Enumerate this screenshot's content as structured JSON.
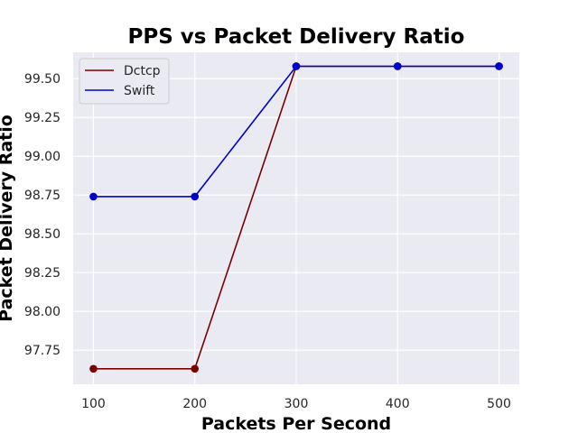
{
  "chart_data": {
    "type": "line",
    "title": "PPS vs Packet Delivery Ratio",
    "xlabel": "Packets Per Second",
    "ylabel": "Packet Delivery Ratio",
    "x": [
      100,
      200,
      300,
      400,
      500
    ],
    "x_ticks": [
      "100",
      "200",
      "300",
      "400",
      "500"
    ],
    "y_ticks": [
      "97.75",
      "98.00",
      "98.25",
      "98.50",
      "98.75",
      "99.00",
      "99.25",
      "99.50"
    ],
    "xlim": [
      80,
      520
    ],
    "ylim": [
      97.53,
      99.67
    ],
    "grid": true,
    "legend_position": "top-left",
    "series": [
      {
        "name": "Dctcp",
        "color": "#7a0000",
        "values": [
          97.63,
          97.63,
          99.58,
          99.58,
          99.58
        ]
      },
      {
        "name": "Swift",
        "color": "#0000cc",
        "values": [
          98.74,
          98.74,
          99.58,
          99.58,
          99.58
        ]
      }
    ],
    "colors": {
      "plot_bg": "#eaeaf2",
      "grid": "#ffffff"
    }
  }
}
